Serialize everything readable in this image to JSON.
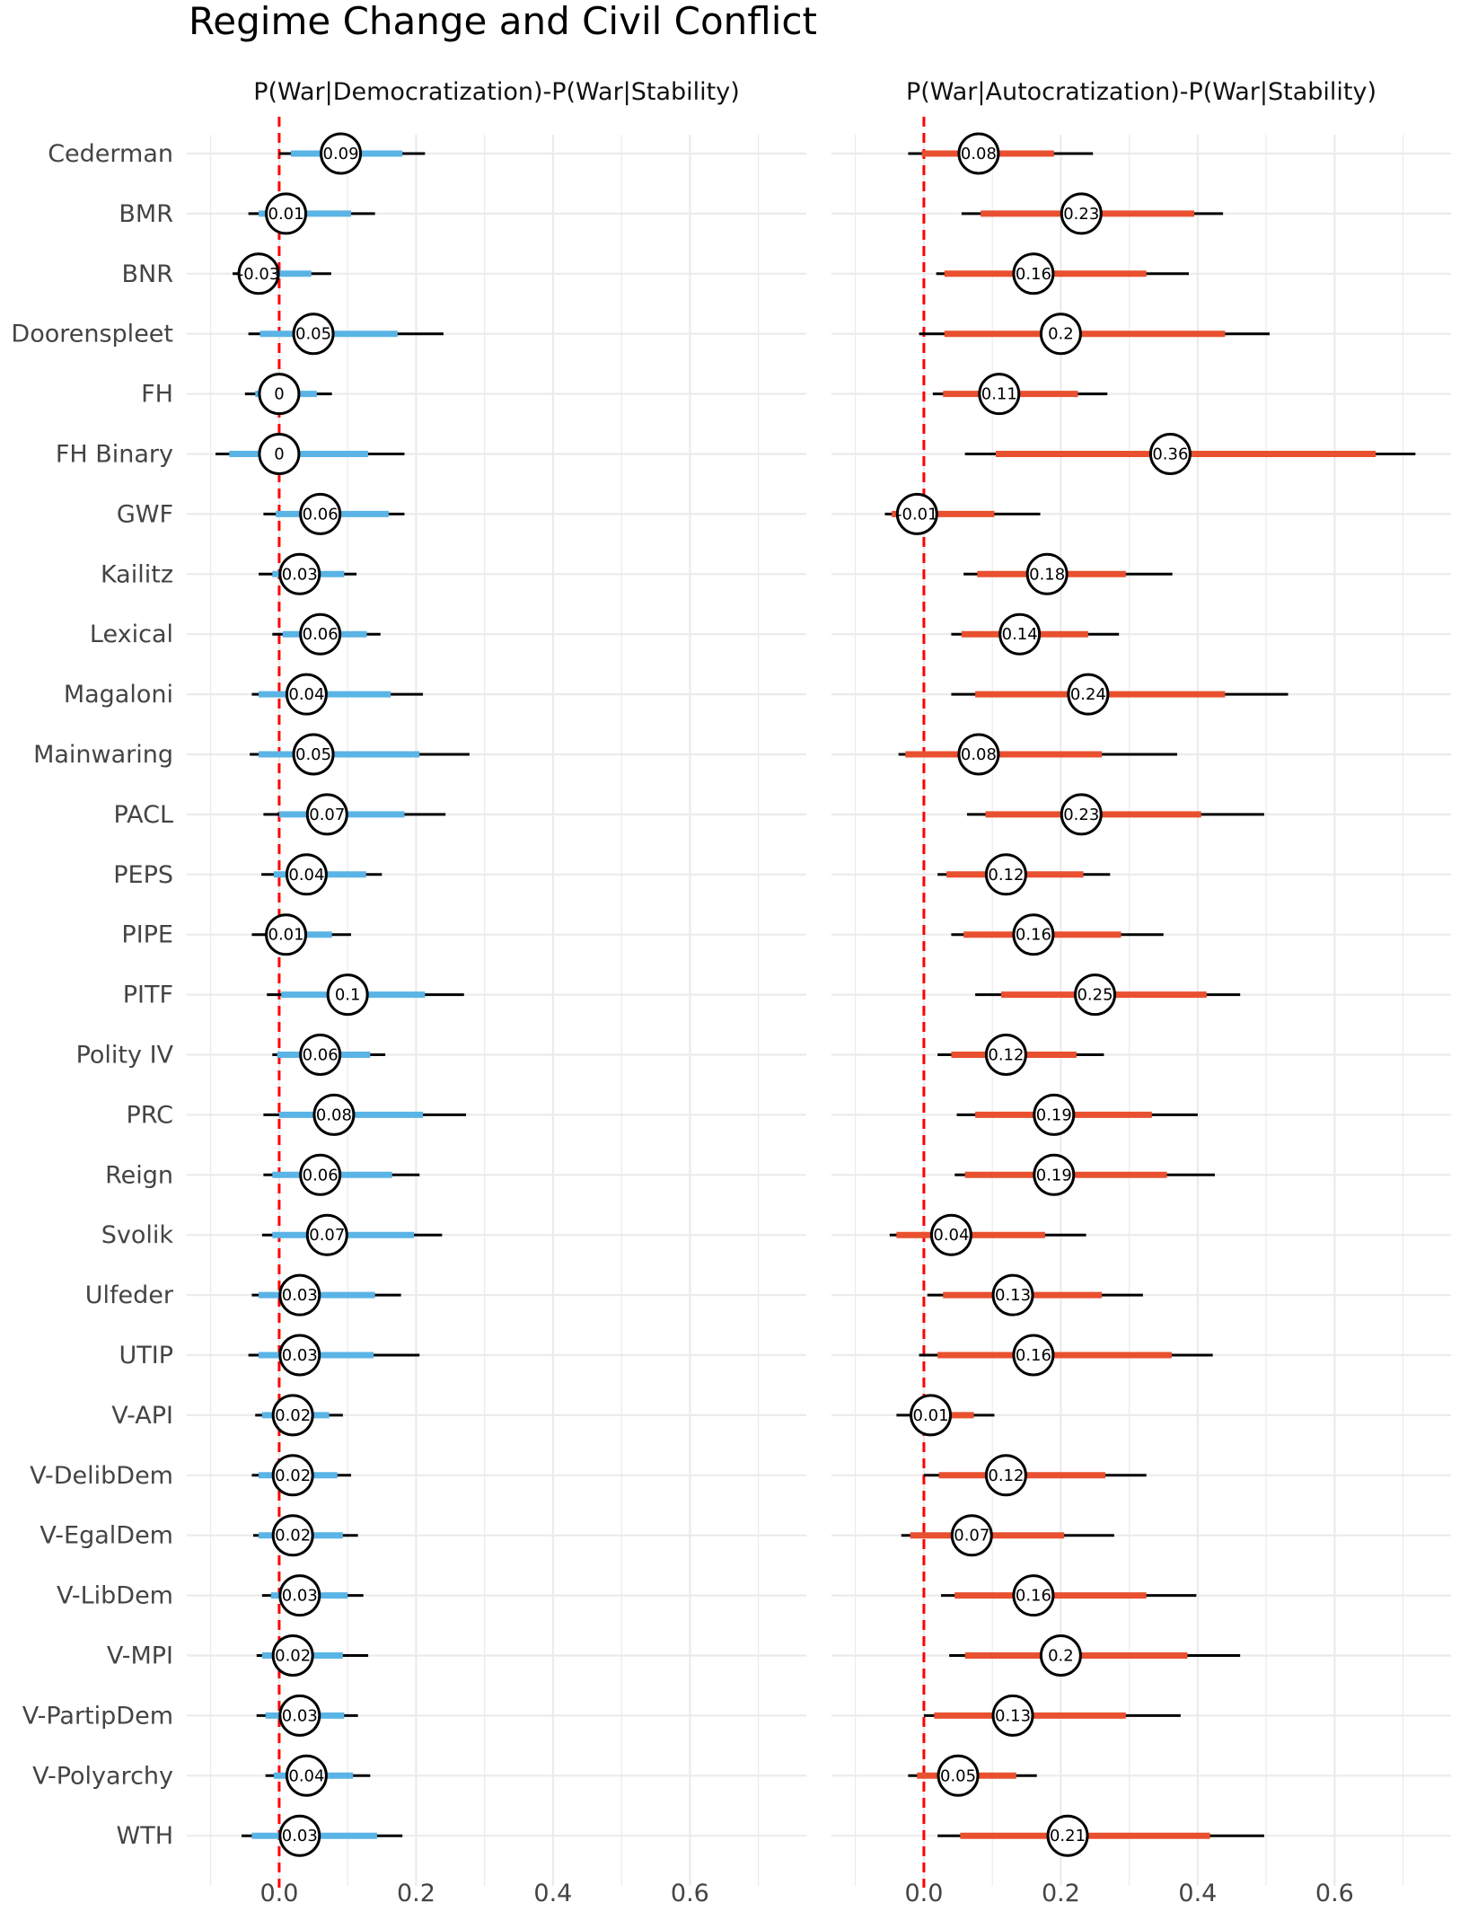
{
  "chart_data": {
    "type": "forest",
    "title": "Regime Change and Civil Conflict",
    "categories": [
      "Cederman",
      "BMR",
      "BNR",
      "Doorenspleet",
      "FH",
      "FH Binary",
      "GWF",
      "Kailitz",
      "Lexical",
      "Magaloni",
      "Mainwaring",
      "PACL",
      "PEPS",
      "PIPE",
      "PITF",
      "Polity IV",
      "PRC",
      "Reign",
      "Svolik",
      "Ulfeder",
      "UTIP",
      "V-API",
      "V-DelibDem",
      "V-EgalDem",
      "V-LibDem",
      "V-MPI",
      "V-PartipDem",
      "V-Polyarchy",
      "WTH"
    ],
    "x_ticks": [
      "0.0",
      "0.2",
      "0.4",
      "0.6"
    ],
    "xlim": [
      -0.135,
      0.77
    ],
    "reference_line": 0,
    "grid": true,
    "panels": [
      {
        "name": "P(War|Democratization)-P(War|Stability)",
        "color": "#5ab4e5",
        "series": [
          {
            "label": "0.09",
            "estimate": 0.09,
            "inner": [
              0.017,
              0.18
            ],
            "outer": [
              0.0,
              0.213
            ]
          },
          {
            "label": "0.01",
            "estimate": 0.01,
            "inner": [
              -0.03,
              0.105
            ],
            "outer": [
              -0.045,
              0.14
            ]
          },
          {
            "label": "-0.03",
            "estimate": -0.03,
            "inner": [
              -0.06,
              0.047
            ],
            "outer": [
              -0.068,
              0.076
            ]
          },
          {
            "label": "0.05",
            "estimate": 0.05,
            "inner": [
              -0.028,
              0.173
            ],
            "outer": [
              -0.045,
              0.24
            ]
          },
          {
            "label": "0",
            "estimate": 0.0,
            "inner": [
              -0.035,
              0.055
            ],
            "outer": [
              -0.05,
              0.077
            ]
          },
          {
            "label": "0",
            "estimate": 0.0,
            "inner": [
              -0.073,
              0.13
            ],
            "outer": [
              -0.093,
              0.183
            ]
          },
          {
            "label": "0.06",
            "estimate": 0.06,
            "inner": [
              -0.005,
              0.16
            ],
            "outer": [
              -0.023,
              0.183
            ]
          },
          {
            "label": "0.03",
            "estimate": 0.03,
            "inner": [
              -0.01,
              0.095
            ],
            "outer": [
              -0.03,
              0.113
            ]
          },
          {
            "label": "0.06",
            "estimate": 0.06,
            "inner": [
              0.005,
              0.128
            ],
            "outer": [
              -0.01,
              0.148
            ]
          },
          {
            "label": "0.04",
            "estimate": 0.04,
            "inner": [
              -0.03,
              0.163
            ],
            "outer": [
              -0.04,
              0.21
            ]
          },
          {
            "label": "0.05",
            "estimate": 0.05,
            "inner": [
              -0.03,
              0.205
            ],
            "outer": [
              -0.043,
              0.278
            ]
          },
          {
            "label": "0.07",
            "estimate": 0.07,
            "inner": [
              0.0,
              0.183
            ],
            "outer": [
              -0.023,
              0.243
            ]
          },
          {
            "label": "0.04",
            "estimate": 0.04,
            "inner": [
              -0.008,
              0.127
            ],
            "outer": [
              -0.026,
              0.15
            ]
          },
          {
            "label": "0.01",
            "estimate": 0.01,
            "inner": [
              -0.02,
              0.077
            ],
            "outer": [
              -0.04,
              0.105
            ]
          },
          {
            "label": "0.1",
            "estimate": 0.1,
            "inner": [
              0.003,
              0.213
            ],
            "outer": [
              -0.018,
              0.27
            ]
          },
          {
            "label": "0.06",
            "estimate": 0.06,
            "inner": [
              -0.003,
              0.133
            ],
            "outer": [
              -0.01,
              0.155
            ]
          },
          {
            "label": "0.08",
            "estimate": 0.08,
            "inner": [
              0.0,
              0.21
            ],
            "outer": [
              -0.023,
              0.273
            ]
          },
          {
            "label": "0.06",
            "estimate": 0.06,
            "inner": [
              -0.01,
              0.165
            ],
            "outer": [
              -0.023,
              0.205
            ]
          },
          {
            "label": "0.07",
            "estimate": 0.07,
            "inner": [
              -0.01,
              0.197
            ],
            "outer": [
              -0.025,
              0.238
            ]
          },
          {
            "label": "0.03",
            "estimate": 0.03,
            "inner": [
              -0.03,
              0.14
            ],
            "outer": [
              -0.04,
              0.178
            ]
          },
          {
            "label": "0.03",
            "estimate": 0.03,
            "inner": [
              -0.03,
              0.138
            ],
            "outer": [
              -0.045,
              0.205
            ]
          },
          {
            "label": "0.02",
            "estimate": 0.02,
            "inner": [
              -0.025,
              0.073
            ],
            "outer": [
              -0.035,
              0.093
            ]
          },
          {
            "label": "0.02",
            "estimate": 0.02,
            "inner": [
              -0.03,
              0.085
            ],
            "outer": [
              -0.04,
              0.105
            ]
          },
          {
            "label": "0.02",
            "estimate": 0.02,
            "inner": [
              -0.03,
              0.093
            ],
            "outer": [
              -0.038,
              0.115
            ]
          },
          {
            "label": "0.03",
            "estimate": 0.03,
            "inner": [
              -0.012,
              0.1
            ],
            "outer": [
              -0.025,
              0.123
            ]
          },
          {
            "label": "0.02",
            "estimate": 0.02,
            "inner": [
              -0.025,
              0.093
            ],
            "outer": [
              -0.033,
              0.13
            ]
          },
          {
            "label": "0.03",
            "estimate": 0.03,
            "inner": [
              -0.02,
              0.095
            ],
            "outer": [
              -0.033,
              0.115
            ]
          },
          {
            "label": "0.04",
            "estimate": 0.04,
            "inner": [
              -0.008,
              0.108
            ],
            "outer": [
              -0.02,
              0.133
            ]
          },
          {
            "label": "0.03",
            "estimate": 0.03,
            "inner": [
              -0.04,
              0.143
            ],
            "outer": [
              -0.055,
              0.18
            ]
          }
        ]
      },
      {
        "name": "P(War|Autocratization)-P(War|Stability)",
        "color": "#e8502f",
        "series": [
          {
            "label": "0.08",
            "estimate": 0.08,
            "inner": [
              -0.003,
              0.19
            ],
            "outer": [
              -0.023,
              0.247
            ]
          },
          {
            "label": "0.23",
            "estimate": 0.23,
            "inner": [
              0.083,
              0.395
            ],
            "outer": [
              0.055,
              0.437
            ]
          },
          {
            "label": "0.16",
            "estimate": 0.16,
            "inner": [
              0.03,
              0.325
            ],
            "outer": [
              0.018,
              0.387
            ]
          },
          {
            "label": "0.2",
            "estimate": 0.2,
            "inner": [
              0.03,
              0.44
            ],
            "outer": [
              -0.007,
              0.505
            ]
          },
          {
            "label": "0.11",
            "estimate": 0.11,
            "inner": [
              0.028,
              0.225
            ],
            "outer": [
              0.013,
              0.268
            ]
          },
          {
            "label": "0.36",
            "estimate": 0.36,
            "inner": [
              0.105,
              0.66
            ],
            "outer": [
              0.06,
              0.718
            ]
          },
          {
            "label": "-0.01",
            "estimate": -0.01,
            "inner": [
              -0.047,
              0.103
            ],
            "outer": [
              -0.057,
              0.17
            ]
          },
          {
            "label": "0.18",
            "estimate": 0.18,
            "inner": [
              0.078,
              0.295
            ],
            "outer": [
              0.058,
              0.363
            ]
          },
          {
            "label": "0.14",
            "estimate": 0.14,
            "inner": [
              0.055,
              0.24
            ],
            "outer": [
              0.04,
              0.285
            ]
          },
          {
            "label": "0.24",
            "estimate": 0.24,
            "inner": [
              0.075,
              0.44
            ],
            "outer": [
              0.04,
              0.532
            ]
          },
          {
            "label": "0.08",
            "estimate": 0.08,
            "inner": [
              -0.027,
              0.26
            ],
            "outer": [
              -0.037,
              0.37
            ]
          },
          {
            "label": "0.23",
            "estimate": 0.23,
            "inner": [
              0.09,
              0.405
            ],
            "outer": [
              0.063,
              0.497
            ]
          },
          {
            "label": "0.12",
            "estimate": 0.12,
            "inner": [
              0.033,
              0.233
            ],
            "outer": [
              0.02,
              0.272
            ]
          },
          {
            "label": "0.16",
            "estimate": 0.16,
            "inner": [
              0.058,
              0.288
            ],
            "outer": [
              0.04,
              0.35
            ]
          },
          {
            "label": "0.25",
            "estimate": 0.25,
            "inner": [
              0.113,
              0.413
            ],
            "outer": [
              0.075,
              0.462
            ]
          },
          {
            "label": "0.12",
            "estimate": 0.12,
            "inner": [
              0.04,
              0.223
            ],
            "outer": [
              0.02,
              0.263
            ]
          },
          {
            "label": "0.19",
            "estimate": 0.19,
            "inner": [
              0.075,
              0.333
            ],
            "outer": [
              0.048,
              0.4
            ]
          },
          {
            "label": "0.19",
            "estimate": 0.19,
            "inner": [
              0.06,
              0.355
            ],
            "outer": [
              0.045,
              0.425
            ]
          },
          {
            "label": "0.04",
            "estimate": 0.04,
            "inner": [
              -0.04,
              0.177
            ],
            "outer": [
              -0.05,
              0.237
            ]
          },
          {
            "label": "0.13",
            "estimate": 0.13,
            "inner": [
              0.028,
              0.26
            ],
            "outer": [
              0.005,
              0.32
            ]
          },
          {
            "label": "0.16",
            "estimate": 0.16,
            "inner": [
              0.02,
              0.362
            ],
            "outer": [
              -0.007,
              0.422
            ]
          },
          {
            "label": "0.01",
            "estimate": 0.01,
            "inner": [
              -0.02,
              0.073
            ],
            "outer": [
              -0.04,
              0.103
            ]
          },
          {
            "label": "0.12",
            "estimate": 0.12,
            "inner": [
              0.022,
              0.265
            ],
            "outer": [
              0.0,
              0.325
            ]
          },
          {
            "label": "0.07",
            "estimate": 0.07,
            "inner": [
              -0.02,
              0.205
            ],
            "outer": [
              -0.033,
              0.278
            ]
          },
          {
            "label": "0.16",
            "estimate": 0.16,
            "inner": [
              0.045,
              0.325
            ],
            "outer": [
              0.025,
              0.398
            ]
          },
          {
            "label": "0.2",
            "estimate": 0.2,
            "inner": [
              0.06,
              0.385
            ],
            "outer": [
              0.037,
              0.462
            ]
          },
          {
            "label": "0.13",
            "estimate": 0.13,
            "inner": [
              0.015,
              0.295
            ],
            "outer": [
              0.0,
              0.375
            ]
          },
          {
            "label": "0.05",
            "estimate": 0.05,
            "inner": [
              -0.01,
              0.135
            ],
            "outer": [
              -0.023,
              0.165
            ]
          },
          {
            "label": "0.21",
            "estimate": 0.21,
            "inner": [
              0.053,
              0.418
            ],
            "outer": [
              0.02,
              0.497
            ]
          }
        ]
      }
    ]
  }
}
